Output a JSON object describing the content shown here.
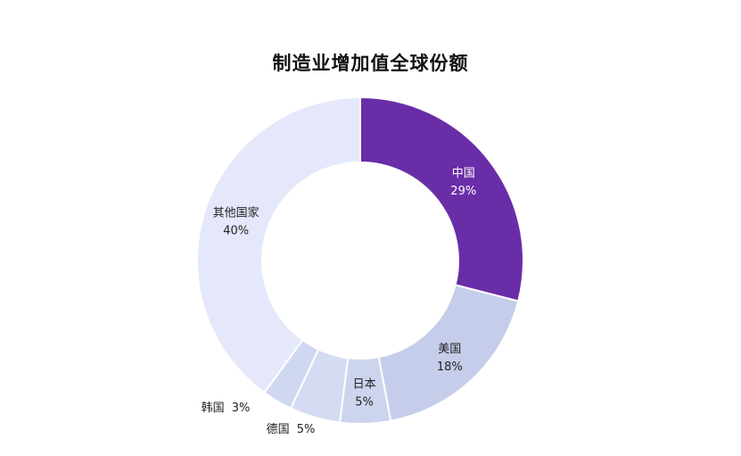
{
  "chart_data": {
    "type": "pie",
    "variant": "donut",
    "title": "制造业增加值全球份额",
    "categories": [
      "中国",
      "美国",
      "日本",
      "德国",
      "韩国",
      "其他国家"
    ],
    "values": [
      29,
      18,
      5,
      5,
      3,
      40
    ],
    "value_labels": [
      "29%",
      "18%",
      "5%",
      "5%",
      "3%",
      "40%"
    ],
    "colors": [
      "#6A2DA8",
      "#C5CDEA",
      "#CDD4EE",
      "#D5DBF2",
      "#D0D7F0",
      "#E4E8FA"
    ],
    "label_colors": [
      "#ffffff",
      "#222222",
      "#222222",
      "#222222",
      "#222222",
      "#222222"
    ],
    "label_placement": [
      "inside",
      "inside",
      "inside",
      "outside",
      "outside",
      "inside"
    ],
    "start_angle_deg": 0,
    "direction": "clockwise",
    "legend": "none"
  }
}
